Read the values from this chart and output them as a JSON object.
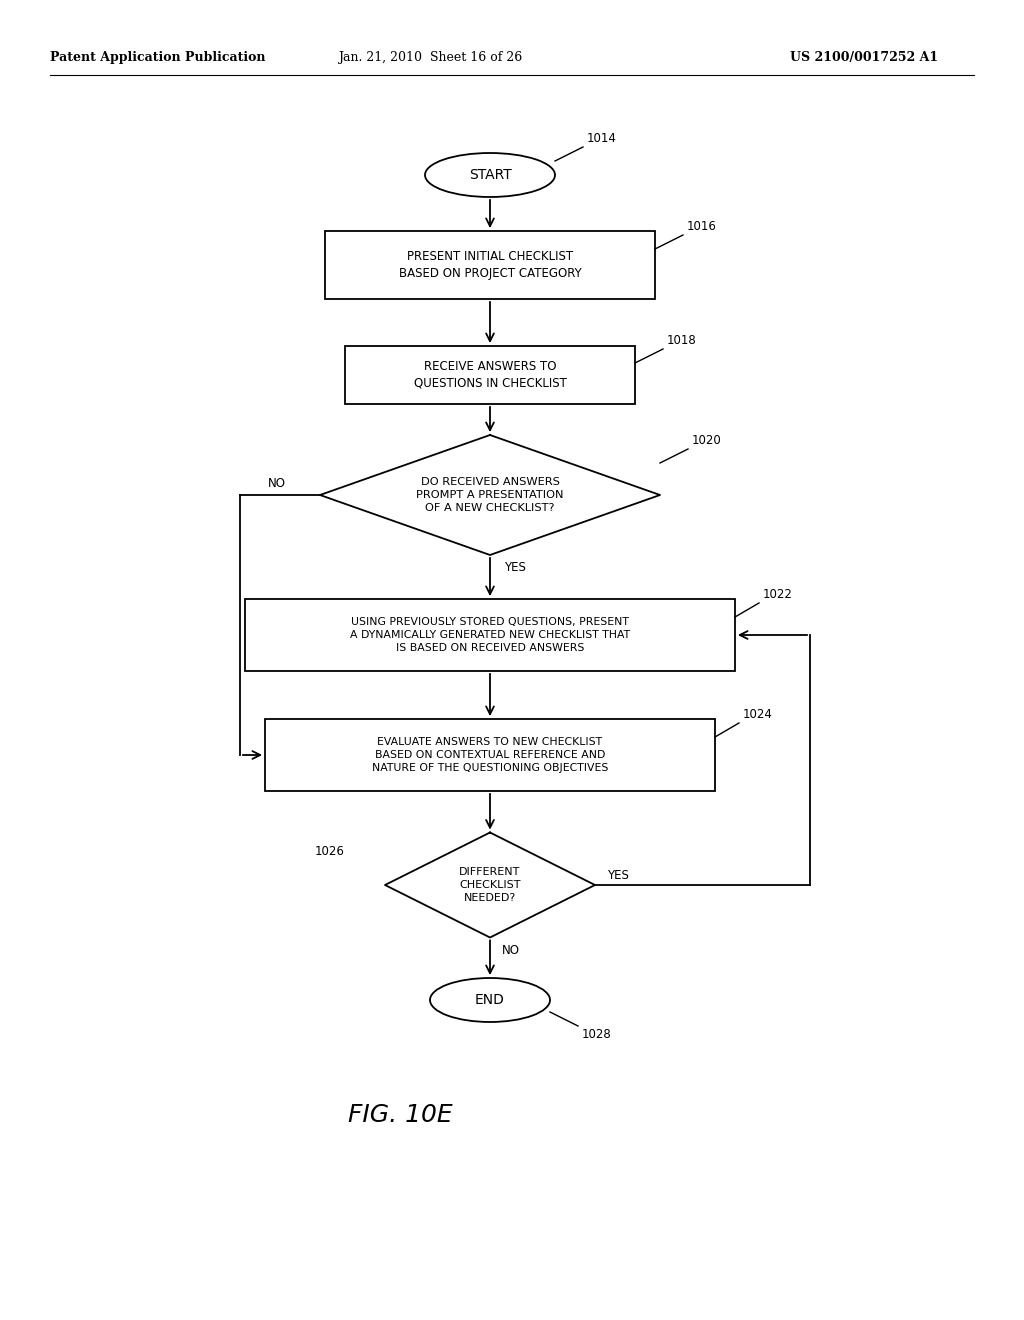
{
  "bg_color": "#ffffff",
  "header_left": "Patent Application Publication",
  "header_mid": "Jan. 21, 2010  Sheet 16 of 26",
  "header_right": "US 2100/0017252 A1",
  "fig_label": "FIG. 10E",
  "start_label": "START",
  "end_label": "END",
  "ref_start": "1014",
  "ref_1016": "1016",
  "ref_1018": "1018",
  "ref_1020": "1020",
  "ref_1022": "1022",
  "ref_1024": "1024",
  "ref_1026": "1026",
  "ref_end": "1028",
  "text_1016": "PRESENT INITIAL CHECKLIST\nBASED ON PROJECT CATEGORY",
  "text_1018": "RECEIVE ANSWERS TO\nQUESTIONS IN CHECKLIST",
  "text_1020": "DO RECEIVED ANSWERS\nPROMPT A PRESENTATION\nOF A NEW CHECKLIST?",
  "text_1022": "USING PREVIOUSLY STORED QUESTIONS, PRESENT\nA DYNAMICALLY GENERATED NEW CHECKLIST THAT\nIS BASED ON RECEIVED ANSWERS",
  "text_1024": "EVALUATE ANSWERS TO NEW CHECKLIST\nBASED ON CONTEXTUAL REFERENCE AND\nNATURE OF THE QUESTIONING OBJECTIVES",
  "text_1026": "DIFFERENT\nCHECKLIST\nNEEDED?",
  "label_yes": "YES",
  "label_no": "NO"
}
